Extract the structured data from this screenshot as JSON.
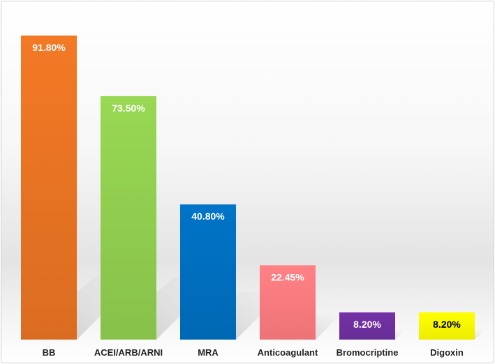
{
  "chart_data": {
    "type": "bar",
    "categories": [
      "BB",
      "ACEI/ARB/ARNI",
      "MRA",
      "Anticoagulant",
      "Bromocriptine",
      "Digoxin"
    ],
    "values": [
      91.8,
      73.5,
      40.8,
      22.45,
      8.2,
      8.2
    ],
    "data_labels": [
      "91.80%",
      "73.50%",
      "40.80%",
      "22.45%",
      "8.20%",
      "8.20%"
    ],
    "colors": [
      "#ea7424",
      "#92d050",
      "#0070c0",
      "#ff7c80",
      "#7030a0",
      "#ffff00"
    ],
    "label_colors": [
      "#ffffff",
      "#ffffff",
      "#ffffff",
      "#ffffff",
      "#ffffff",
      "#000000"
    ],
    "title": "",
    "xlabel": "",
    "ylabel": "",
    "ylim": [
      0,
      100
    ],
    "grid": false,
    "legend": "none"
  }
}
